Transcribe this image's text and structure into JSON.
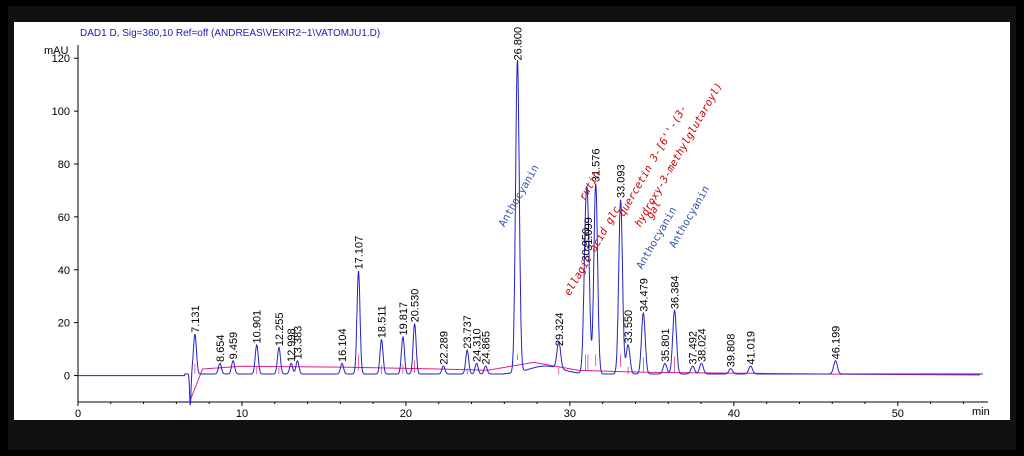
{
  "header": {
    "title": "DAD1 D, Sig=360,10 Ref=off (ANDREAS\\VEKIR2~1\\VATOMJU1.D)"
  },
  "colors": {
    "trace": "#2222cc",
    "baseline": "#e0208a",
    "axis": "#000000",
    "annotation_red": "#cc0000",
    "annotation_blue": "#3355aa"
  },
  "chart_data": {
    "type": "line",
    "title": "DAD1 D, Sig=360,10 Ref=off (ANDREAS\\VEKIR2~1\\VATOMJU1.D)",
    "xlabel": "min",
    "ylabel": "mAU",
    "xlim": [
      0,
      55.5
    ],
    "ylim": [
      -10,
      125
    ],
    "xticks": [
      0,
      10,
      20,
      30,
      40,
      50
    ],
    "yticks": [
      0,
      20,
      40,
      60,
      80,
      100,
      120
    ],
    "grid": false,
    "peaks": [
      {
        "rt": 7.131,
        "h": 15,
        "label": "7.131"
      },
      {
        "rt": 8.654,
        "h": 4,
        "label": "8.654"
      },
      {
        "rt": 9.459,
        "h": 5,
        "label": "9.459"
      },
      {
        "rt": 10.901,
        "h": 11,
        "label": "10.901"
      },
      {
        "rt": 12.255,
        "h": 10,
        "label": "12.255"
      },
      {
        "rt": 12.998,
        "h": 4,
        "label": "12.998"
      },
      {
        "rt": 13.383,
        "h": 5,
        "label": "13.383"
      },
      {
        "rt": 16.104,
        "h": 4,
        "label": "16.104"
      },
      {
        "rt": 17.107,
        "h": 39,
        "label": "17.107"
      },
      {
        "rt": 18.511,
        "h": 13,
        "label": "18.511"
      },
      {
        "rt": 19.817,
        "h": 14,
        "label": "19.817"
      },
      {
        "rt": 20.53,
        "h": 19,
        "label": "20.530"
      },
      {
        "rt": 22.289,
        "h": 3,
        "label": "22.289"
      },
      {
        "rt": 23.737,
        "h": 9,
        "label": "23.737"
      },
      {
        "rt": 24.31,
        "h": 4,
        "label": "24.310"
      },
      {
        "rt": 24.865,
        "h": 3,
        "label": "24.865"
      },
      {
        "rt": 26.8,
        "h": 118,
        "label": "26.800"
      },
      {
        "rt": 29.324,
        "h": 10,
        "label": "29.324"
      },
      {
        "rt": 30.95,
        "h": 42,
        "label": "30.950"
      },
      {
        "rt": 31.099,
        "h": 46,
        "label": "31.099"
      },
      {
        "rt": 31.576,
        "h": 72,
        "label": "31.576"
      },
      {
        "rt": 33.093,
        "h": 66,
        "label": "33.093"
      },
      {
        "rt": 33.55,
        "h": 11,
        "label": "33.550"
      },
      {
        "rt": 34.479,
        "h": 23,
        "label": "34.479"
      },
      {
        "rt": 35.801,
        "h": 4,
        "label": "35.801"
      },
      {
        "rt": 36.384,
        "h": 24,
        "label": "36.384"
      },
      {
        "rt": 37.492,
        "h": 3,
        "label": "37.492"
      },
      {
        "rt": 38.024,
        "h": 4,
        "label": "38.024"
      },
      {
        "rt": 39.808,
        "h": 2,
        "label": "39.808"
      },
      {
        "rt": 41.019,
        "h": 3,
        "label": "41.019"
      },
      {
        "rt": 46.199,
        "h": 5,
        "label": "46.199"
      }
    ],
    "annotations": [
      {
        "text": "Anthocyanin",
        "rt": 26.0,
        "y": 56,
        "color": "blue"
      },
      {
        "text": "ellagic acid glc",
        "rt": 30.0,
        "y": 30,
        "color": "red"
      },
      {
        "text": "rutin",
        "rt": 30.9,
        "y": 66,
        "color": "red"
      },
      {
        "text": "quercetin 3-[6''-(3-",
        "rt": 33.3,
        "y": 60,
        "color": "red"
      },
      {
        "text": "hydroxy-3-methylglutaroyl)",
        "rt": 34.3,
        "y": 56,
        "color": "red"
      },
      {
        "text": "gal",
        "rt": 35.0,
        "y": 59,
        "color": "red"
      },
      {
        "text": "Anthocyanin",
        "rt": 34.4,
        "y": 40,
        "color": "blue"
      },
      {
        "text": "Anthocyanin",
        "rt": 36.4,
        "y": 48,
        "color": "blue"
      }
    ]
  }
}
